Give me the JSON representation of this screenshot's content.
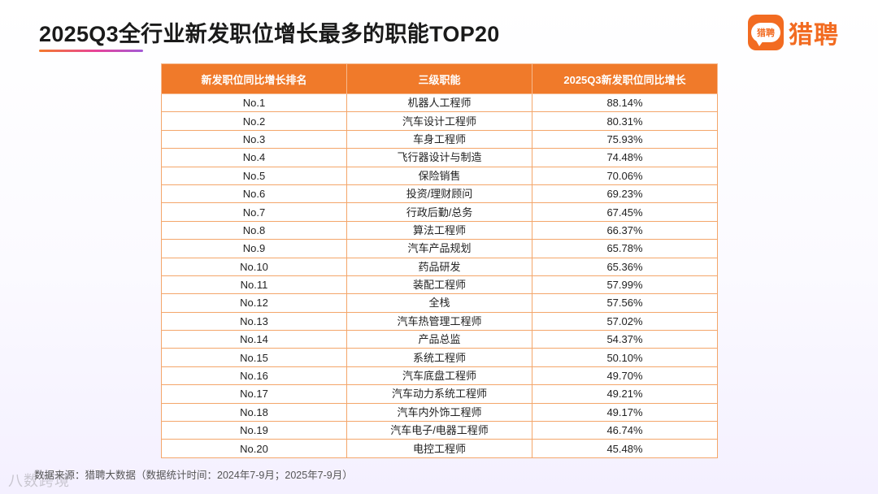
{
  "title": "2025Q3全行业新发职位增长最多的职能TOP20",
  "logo": {
    "badge_text": "猎聘",
    "brand_text": "猎聘"
  },
  "table": {
    "headers": [
      "新发职位同比增长排名",
      "三级职能",
      "2025Q3新发职位同比增长"
    ],
    "rows": [
      [
        "No.1",
        "机器人工程师",
        "88.14%"
      ],
      [
        "No.2",
        "汽车设计工程师",
        "80.31%"
      ],
      [
        "No.3",
        "车身工程师",
        "75.93%"
      ],
      [
        "No.4",
        "飞行器设计与制造",
        "74.48%"
      ],
      [
        "No.5",
        "保险销售",
        "70.06%"
      ],
      [
        "No.6",
        "投资/理财顾问",
        "69.23%"
      ],
      [
        "No.7",
        "行政后勤/总务",
        "67.45%"
      ],
      [
        "No.8",
        "算法工程师",
        "66.37%"
      ],
      [
        "No.9",
        "汽车产品规划",
        "65.78%"
      ],
      [
        "No.10",
        "药品研发",
        "65.36%"
      ],
      [
        "No.11",
        "装配工程师",
        "57.99%"
      ],
      [
        "No.12",
        "全栈",
        "57.56%"
      ],
      [
        "No.13",
        "汽车热管理工程师",
        "57.02%"
      ],
      [
        "No.14",
        "产品总监",
        "54.37%"
      ],
      [
        "No.15",
        "系统工程师",
        "50.10%"
      ],
      [
        "No.16",
        "汽车底盘工程师",
        "49.70%"
      ],
      [
        "No.17",
        "汽车动力系统工程师",
        "49.21%"
      ],
      [
        "No.18",
        "汽车内外饰工程师",
        "49.17%"
      ],
      [
        "No.19",
        "汽车电子/电器工程师",
        "46.74%"
      ],
      [
        "No.20",
        "电控工程师",
        "45.48%"
      ]
    ]
  },
  "footer": "数据来源：猎聘大数据（数据统计时间：2024年7-9月；2025年7-9月）",
  "watermark": "八数跨境",
  "colors": {
    "header_bg": "#f07a2a",
    "border": "#f4a66a",
    "brand": "#f26b21"
  }
}
